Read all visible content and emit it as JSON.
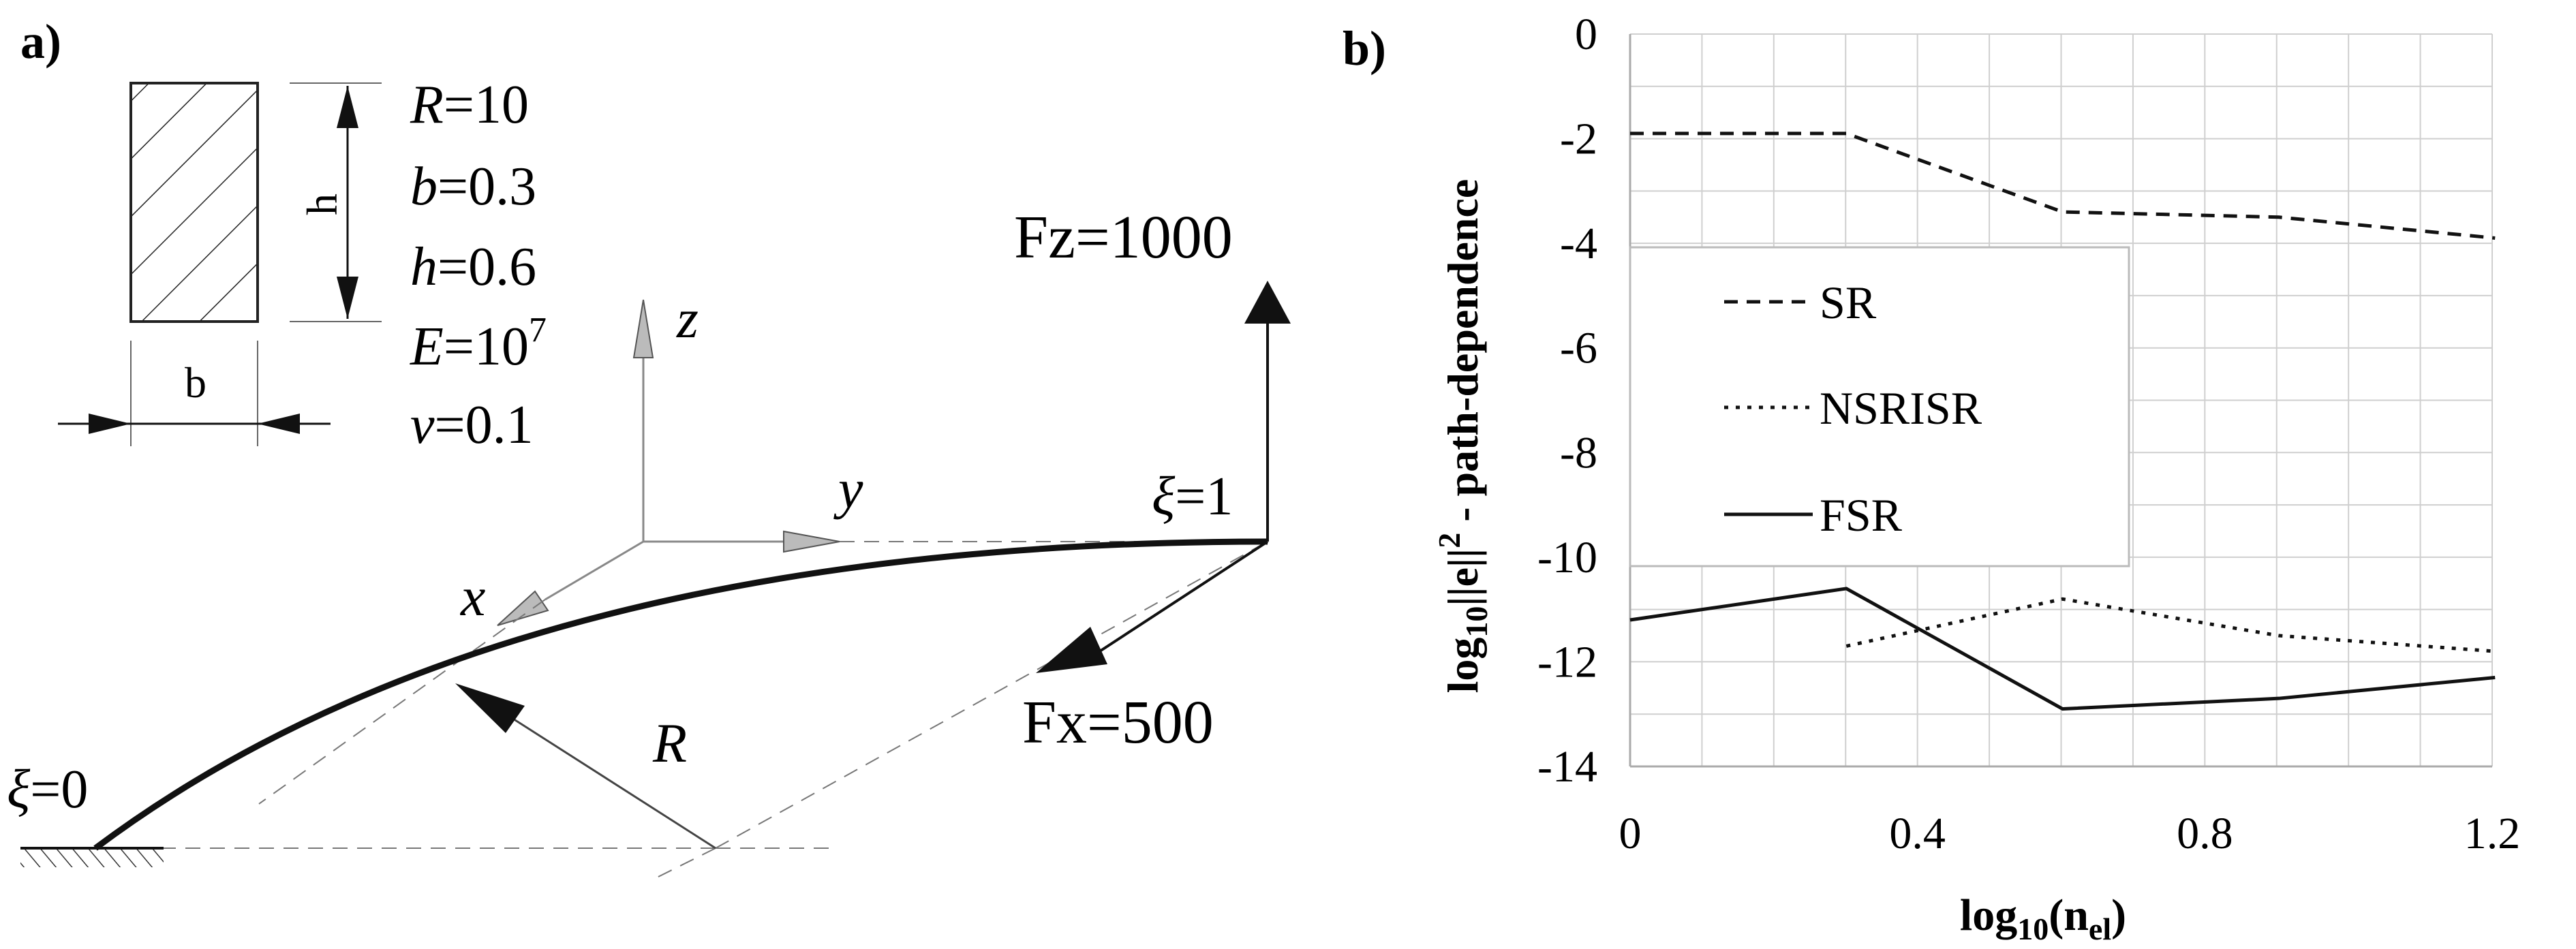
{
  "panel_a": {
    "label": "a)",
    "section": {
      "h_label": "h",
      "b_label": "b"
    },
    "params": {
      "R": {
        "sym": "R",
        "val": "=10"
      },
      "b": {
        "sym": "b",
        "val": "=0.3"
      },
      "h": {
        "sym": "h",
        "val": "=0.6"
      },
      "E": {
        "sym": "E",
        "val": "=10",
        "sup": "7"
      },
      "v": {
        "sym": "ν",
        "val": "=0.1"
      }
    },
    "axes": {
      "x": "x",
      "y": "y",
      "z": "z"
    },
    "loads": {
      "fz": "Fz=1000",
      "fx": "Fx=500"
    },
    "xi0": {
      "sym": "ξ",
      "val": "=0"
    },
    "xi1": {
      "sym": "ξ",
      "val": "=1"
    },
    "radius_label": "R"
  },
  "panel_b": {
    "label": "b)",
    "ylabel_parts": {
      "a": "log",
      "a_sub": "10",
      "b": "||e||",
      "b_sup": "2",
      "c": " - path-dependence"
    },
    "xlabel_parts": {
      "a": "log",
      "a_sub": "10",
      "b": "(n",
      "b_sub": "el",
      "c": ")"
    }
  },
  "chart_data": {
    "type": "line",
    "xlim": [
      0,
      1.2
    ],
    "ylim": [
      -14,
      0
    ],
    "xticks": [
      "0",
      "0.4",
      "0.8",
      "1.2"
    ],
    "yticks": [
      "0",
      "-2",
      "-4",
      "-6",
      "-8",
      "-10",
      "-12",
      "-14"
    ],
    "grid": true,
    "legend_position": "center-left",
    "series": [
      {
        "name": "SR",
        "style": "dashed",
        "x": [
          0,
          0.301,
          0.602,
          0.903,
          1.204
        ],
        "y": [
          -1.9,
          -1.9,
          -3.4,
          -3.5,
          -3.9
        ]
      },
      {
        "name": "NSRISR",
        "style": "dotted",
        "x": [
          0.301,
          0.602,
          0.903,
          1.204
        ],
        "y": [
          -11.7,
          -10.8,
          -11.5,
          -11.8
        ]
      },
      {
        "name": "FSR",
        "style": "solid",
        "x": [
          0,
          0.301,
          0.602,
          0.903,
          1.204
        ],
        "y": [
          -11.2,
          -10.6,
          -12.9,
          -12.7,
          -12.3
        ]
      }
    ]
  }
}
